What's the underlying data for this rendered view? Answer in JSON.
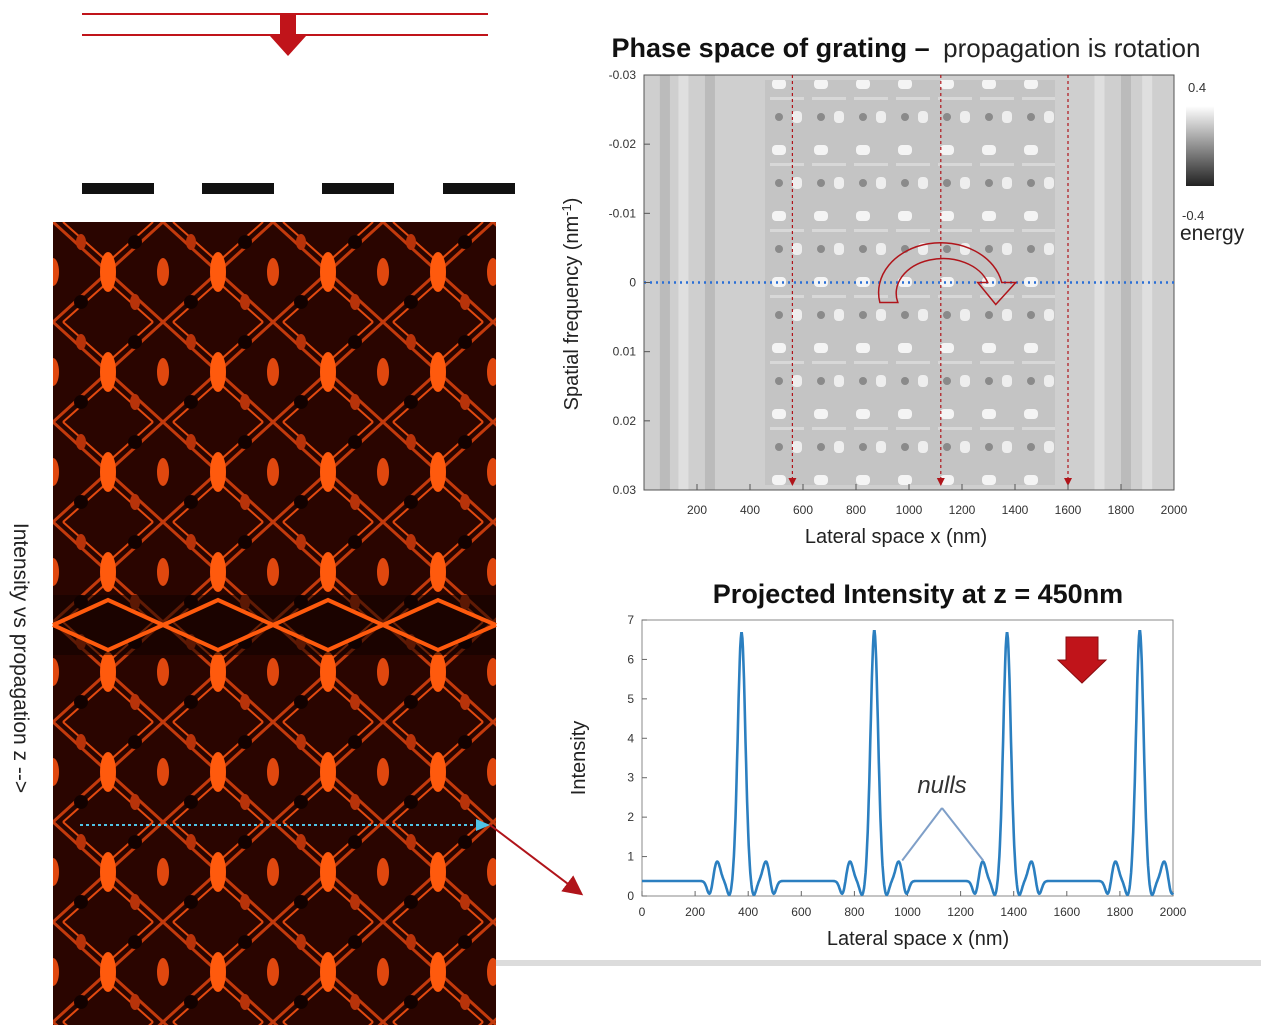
{
  "side_label": "Intensity vs propagation  z -->",
  "colors": {
    "accent_red": "#c0141a",
    "dark_red": "#a01818",
    "blue_line": "#2b7fc0",
    "heat_low": "#140200",
    "heat_high": "#ff5a0d"
  },
  "chart_data": [
    {
      "type": "heatmap",
      "title_bold": "Phase space of grating –",
      "title_rest": "propagation is rotation",
      "xlabel": "Lateral space x (nm)",
      "ylabel": "Spatial frequency (nm",
      "ylabel_sup": "-1",
      "ylabel_close": ")",
      "xlim": [
        0,
        2000
      ],
      "ylim": [
        -0.03,
        0.03
      ],
      "x_ticks": [
        200,
        400,
        600,
        800,
        1000,
        1200,
        1400,
        1600,
        1800,
        2000
      ],
      "x_tick_labels": [
        "200",
        "400",
        "600",
        "800",
        "1000",
        "1200",
        "1400",
        "1600",
        "1800",
        "2000"
      ],
      "y_ticks": [
        -0.03,
        -0.02,
        -0.01,
        0,
        0.01,
        0.02,
        0.03
      ],
      "y_tick_labels": [
        "-0.03",
        "-0.02",
        "-0.01",
        "0",
        "0.01",
        "0.02",
        "0.03"
      ],
      "colorbar": {
        "max_label": "0.4",
        "min_label": "-0.4",
        "label": "energy",
        "range": [
          -0.4,
          0.4
        ]
      },
      "guide_x": [
        560,
        1120,
        1600
      ],
      "dotted_y": 0,
      "arc_center_x": 1120,
      "arc_radius_x": 230
    },
    {
      "type": "line",
      "title": "Projected Intensity at z = 450nm",
      "xlabel": "Lateral space x (nm)",
      "ylabel": "Intensity",
      "xlim": [
        0,
        2000
      ],
      "ylim": [
        0,
        7
      ],
      "x_ticks": [
        0,
        200,
        400,
        600,
        800,
        1000,
        1200,
        1400,
        1600,
        1800,
        2000
      ],
      "x_tick_labels": [
        "0",
        "200",
        "400",
        "600",
        "800",
        "1000",
        "1200",
        "1400",
        "1600",
        "1800",
        "2000"
      ],
      "y_ticks": [
        0,
        1,
        2,
        3,
        4,
        5,
        6,
        7
      ],
      "y_tick_labels": [
        "0",
        "1",
        "2",
        "3",
        "4",
        "5",
        "6",
        "7"
      ],
      "peaks": [
        375,
        875,
        1375,
        1875
      ],
      "peak_values": [
        6.3,
        6.35,
        6.3,
        6.35
      ],
      "baseline": 0.38,
      "annotation": "nulls",
      "annotation_x": [
        980,
        1285
      ]
    }
  ]
}
